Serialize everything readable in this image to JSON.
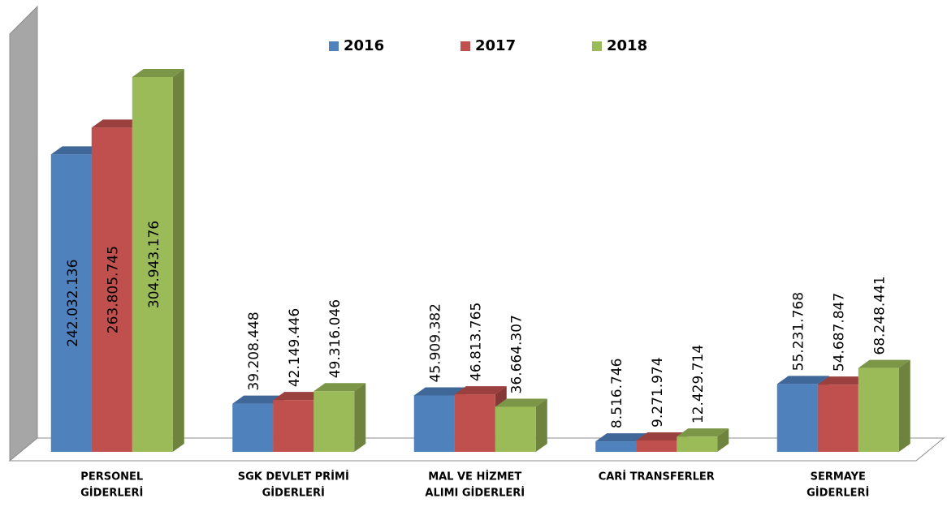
{
  "chart_data": {
    "type": "bar3d",
    "categories": [
      [
        "PERSONEL",
        "GİDERLERİ"
      ],
      [
        "SGK DEVLET PRİMİ",
        "GİDERLERİ"
      ],
      [
        "MAL VE HİZMET",
        "ALIMI GİDERLERİ"
      ],
      [
        "CARİ TRANSFERLER"
      ],
      [
        "SERMAYE",
        "GİDERLERİ"
      ]
    ],
    "series": [
      {
        "name": "2016",
        "color": "#4f81bd",
        "values": [
          242032136,
          39208448,
          45909382,
          8516746,
          55231768
        ],
        "value_labels": [
          "242.032.136",
          "39.208.448",
          "45.909.382",
          "8.516.746",
          "55.231.768"
        ]
      },
      {
        "name": "2017",
        "color": "#c0504d",
        "values": [
          263805745,
          42149446,
          46813765,
          9271974,
          54687847
        ],
        "value_labels": [
          "263.805.745",
          "42.149.446",
          "46.813.765",
          "9.271.974",
          "54.687.847"
        ]
      },
      {
        "name": "2018",
        "color": "#9bbb59",
        "values": [
          304943176,
          49316046,
          36664307,
          12429714,
          68248441
        ],
        "value_labels": [
          "304.943.176",
          "49.316.046",
          "36.664.307",
          "12.429.714",
          "68.248.441"
        ]
      }
    ],
    "legend": "top"
  }
}
